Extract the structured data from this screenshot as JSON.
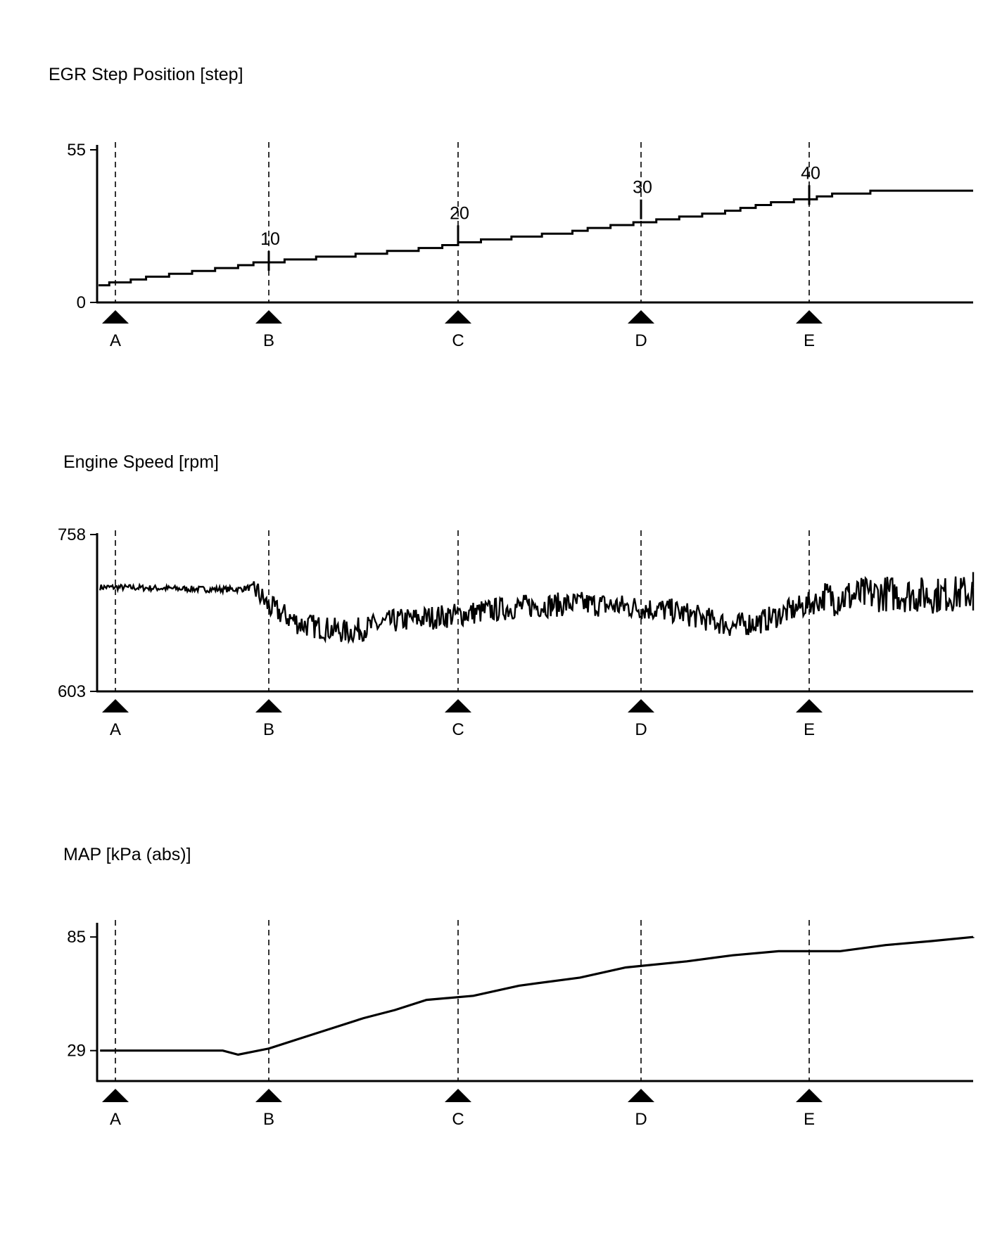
{
  "chart_data": [
    {
      "type": "line",
      "title": "EGR Step Position [step]",
      "ylim": [
        0,
        55
      ],
      "yticks": [
        "55",
        "0"
      ],
      "markers": [
        "A",
        "B",
        "C",
        "D",
        "E"
      ],
      "series": [
        {
          "values": [
            [
              -0.9,
              6
            ],
            [
              -0.4,
              7
            ],
            [
              1.0,
              8
            ],
            [
              2.0,
              9
            ],
            [
              3.5,
              10
            ],
            [
              5.0,
              11
            ],
            [
              6.5,
              12
            ],
            [
              8.0,
              13
            ],
            [
              9.0,
              14
            ],
            [
              11.0,
              15
            ],
            [
              13.0,
              16
            ],
            [
              15.5,
              17
            ],
            [
              17.5,
              18
            ],
            [
              19.5,
              19
            ],
            [
              21.0,
              20
            ],
            [
              22.0,
              21
            ],
            [
              23.5,
              22
            ],
            [
              25.5,
              23
            ],
            [
              27.5,
              24
            ],
            [
              29.5,
              25
            ],
            [
              30.5,
              26
            ],
            [
              32.0,
              27
            ],
            [
              33.5,
              28
            ],
            [
              35.0,
              29
            ],
            [
              36.5,
              30
            ],
            [
              38.0,
              31
            ],
            [
              39.5,
              32
            ],
            [
              40.5,
              33
            ],
            [
              41.5,
              34
            ],
            [
              42.5,
              35
            ],
            [
              44.0,
              36
            ],
            [
              45.5,
              37
            ],
            [
              46.5,
              38
            ],
            [
              49.0,
              39
            ],
            [
              52.0,
              39
            ]
          ]
        }
      ],
      "point_labels": [
        "10",
        "20",
        "30",
        "40"
      ]
    },
    {
      "type": "line",
      "title": "Engine Speed [rpm]",
      "ylim": [
        603,
        758
      ],
      "yticks": [
        "758",
        "603"
      ],
      "markers": [
        "A",
        "B",
        "C",
        "D",
        "E"
      ],
      "series": [
        {
          "description_of_shape": "noisy idle speed trace",
          "values": [
            [
              0,
              705
            ],
            [
              3,
              704
            ],
            [
              6,
              703
            ],
            [
              8,
              703
            ],
            [
              9,
              705
            ],
            [
              10,
              686
            ],
            [
              12,
              669
            ],
            [
              15,
              661
            ],
            [
              18,
              672
            ],
            [
              22,
              678
            ],
            [
              26,
              686
            ],
            [
              30,
              689
            ],
            [
              33,
              686
            ],
            [
              36,
              682
            ],
            [
              38,
              675
            ],
            [
              40,
              667
            ],
            [
              42,
              672
            ],
            [
              43,
              678
            ],
            [
              46,
              694
            ],
            [
              50,
              699
            ],
            [
              53,
              697
            ],
            [
              56,
              700
            ],
            [
              58,
              703
            ]
          ]
        }
      ]
    },
    {
      "type": "line",
      "title": "MAP [kPa (abs)]",
      "ylim": [
        14,
        92
      ],
      "yticks": [
        "85",
        "29"
      ],
      "markers": [
        "A",
        "B",
        "C",
        "D",
        "E"
      ],
      "series": [
        {
          "values": [
            [
              -1,
              29
            ],
            [
              7,
              29
            ],
            [
              8,
              27
            ],
            [
              10,
              30
            ],
            [
              12,
              35
            ],
            [
              14,
              40
            ],
            [
              16,
              45
            ],
            [
              18,
              49
            ],
            [
              20,
              54
            ],
            [
              23,
              56
            ],
            [
              26,
              61
            ],
            [
              30,
              65
            ],
            [
              33,
              70
            ],
            [
              37,
              73
            ],
            [
              40,
              76
            ],
            [
              43,
              78
            ],
            [
              47,
              78
            ],
            [
              50,
              81
            ],
            [
              53,
              83
            ],
            [
              56,
              85
            ],
            [
              59,
              85
            ],
            [
              61,
              85
            ]
          ]
        }
      ]
    }
  ]
}
